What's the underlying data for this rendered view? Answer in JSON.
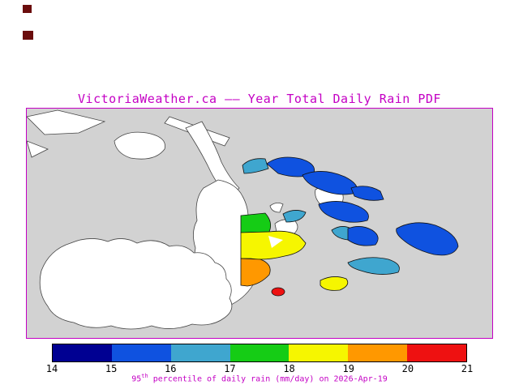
{
  "title": "VictoriaWeather.ca –– Year Total Daily Rain PDF",
  "caption": {
    "number": "95",
    "superscript": "th",
    "rest": " percentile of daily rain (mm/day) on 2026-Apr-19"
  },
  "colorbar": {
    "tick_labels": [
      "14",
      "15",
      "16",
      "17",
      "18",
      "19",
      "20",
      "21"
    ],
    "segment_order": [
      "navy",
      "blue",
      "cyan",
      "green",
      "yellow",
      "orange",
      "red"
    ]
  },
  "palette": {
    "accent": "#c400c4",
    "navy": "#000092",
    "blue": "#0f52e0",
    "cyan": "#3fa6cf",
    "green": "#15cc15",
    "yellow": "#f6f600",
    "orange": "#ff9800",
    "red": "#ee1111",
    "land": "#ffffff",
    "water": "#d2d2d2",
    "coast": "#444444",
    "outline": "#111111",
    "mark": "#6b0d0d"
  }
}
